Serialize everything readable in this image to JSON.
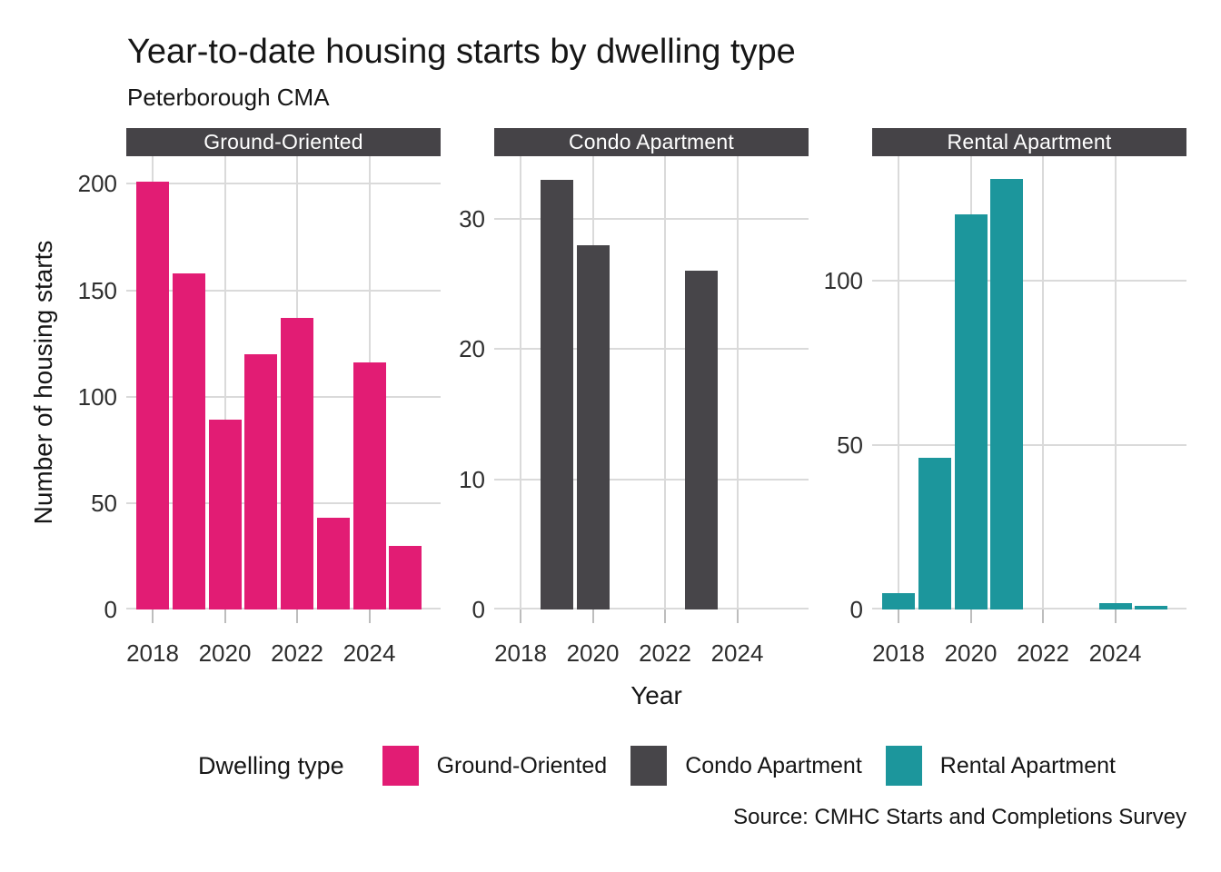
{
  "header": {
    "title": "Year-to-date housing starts by dwelling type",
    "subtitle": "Peterborough CMA"
  },
  "axes": {
    "x_title": "Year",
    "y_title": "Number of housing starts",
    "x_tick_labels": [
      "2018",
      "2020",
      "2022",
      "2024"
    ]
  },
  "legend": {
    "title": "Dwelling type",
    "items": [
      {
        "label": "Ground-Oriented",
        "color": "#E21C74"
      },
      {
        "label": "Condo Apartment",
        "color": "#474549"
      },
      {
        "label": "Rental Apartment",
        "color": "#1C969C"
      }
    ]
  },
  "caption": {
    "text": "Source: CMHC Starts and Completions Survey"
  },
  "colors": {
    "strip_bg": "#454347",
    "strip_text": "#ffffff",
    "gridline": "#dadada",
    "tick": "#bdbdbd",
    "axis_text": "#2e2e2e",
    "pink": "#E21C74",
    "dark_gray": "#474549",
    "teal": "#1C969C"
  },
  "chart_data": {
    "type": "bar",
    "faceted": true,
    "title": "Year-to-date housing starts by dwelling type",
    "subtitle": "Peterborough CMA",
    "xlabel": "Year",
    "ylabel": "Number of housing starts",
    "grid": "major gridlines only, light gray on white",
    "legend_position": "bottom",
    "x": [
      2018,
      2019,
      2020,
      2021,
      2022,
      2023,
      2024,
      2025
    ],
    "x_tick_labels": [
      2018,
      2020,
      2022,
      2024
    ],
    "facets": [
      {
        "label": "Ground-Oriented",
        "color": "#E21C74",
        "values": [
          201,
          158,
          89,
          120,
          137,
          43,
          116,
          30
        ],
        "y_ticks": [
          0,
          50,
          100,
          150,
          200
        ],
        "ylim": [
          0,
          213
        ]
      },
      {
        "label": "Condo Apartment",
        "color": "#474549",
        "values": [
          0,
          33,
          28,
          0,
          0,
          26,
          0,
          0
        ],
        "y_ticks": [
          0,
          10,
          20,
          30
        ],
        "ylim": [
          0,
          34.8
        ]
      },
      {
        "label": "Rental Apartment",
        "color": "#1C969C",
        "values": [
          5,
          46,
          120,
          131,
          0,
          0,
          2,
          1
        ],
        "y_ticks": [
          0,
          50,
          100
        ],
        "ylim": [
          0,
          137.8
        ]
      }
    ]
  }
}
